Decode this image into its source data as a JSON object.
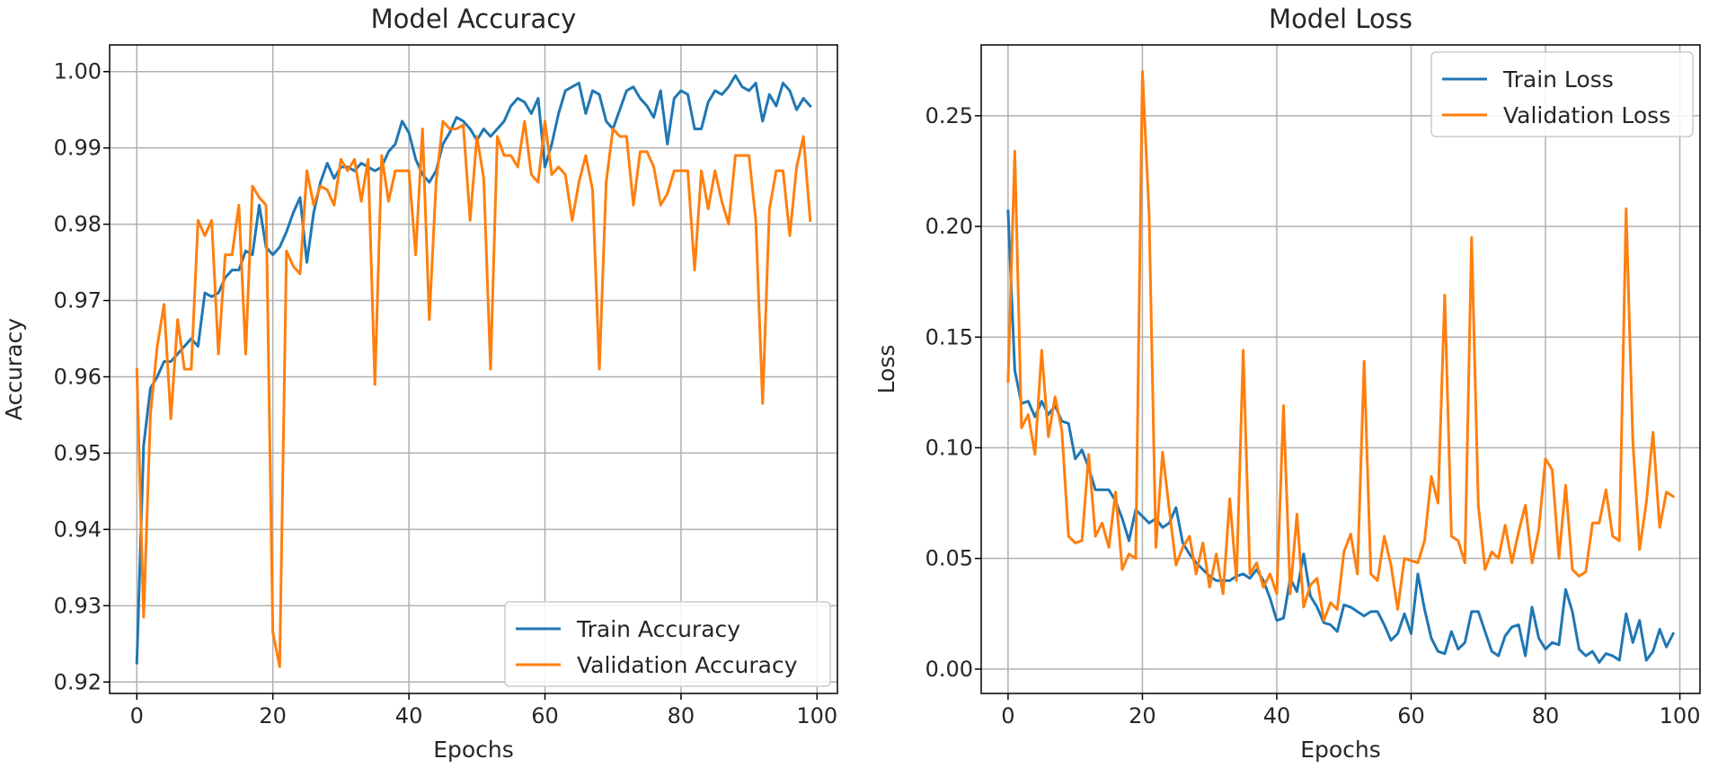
{
  "chart_data": [
    {
      "type": "line",
      "title": "Model Accuracy",
      "xlabel": "Epochs",
      "ylabel": "Accuracy",
      "xlim": [
        -4,
        103
      ],
      "ylim": [
        0.9185,
        1.0035
      ],
      "xticks": [
        0,
        20,
        40,
        60,
        80,
        100
      ],
      "xtick_labels": [
        "0",
        "20",
        "40",
        "60",
        "80",
        "100"
      ],
      "yticks": [
        0.92,
        0.93,
        0.94,
        0.95,
        0.96,
        0.97,
        0.98,
        0.99,
        1.0
      ],
      "ytick_labels": [
        "0.92",
        "0.93",
        "0.94",
        "0.95",
        "0.96",
        "0.97",
        "0.98",
        "0.99",
        "1.00"
      ],
      "grid": true,
      "legend_position": "lower-right",
      "series": [
        {
          "name": "Train Accuracy",
          "color": "#1f77b4",
          "x": [
            0,
            1,
            2,
            3,
            4,
            5,
            6,
            7,
            8,
            9,
            10,
            11,
            12,
            13,
            14,
            15,
            16,
            17,
            18,
            19,
            20,
            21,
            22,
            23,
            24,
            25,
            26,
            27,
            28,
            29,
            30,
            31,
            32,
            33,
            34,
            35,
            36,
            37,
            38,
            39,
            40,
            41,
            42,
            43,
            44,
            45,
            46,
            47,
            48,
            49,
            50,
            51,
            52,
            53,
            54,
            55,
            56,
            57,
            58,
            59,
            60,
            61,
            62,
            63,
            64,
            65,
            66,
            67,
            68,
            69,
            70,
            71,
            72,
            73,
            74,
            75,
            76,
            77,
            78,
            79,
            80,
            81,
            82,
            83,
            84,
            85,
            86,
            87,
            88,
            89,
            90,
            91,
            92,
            93,
            94,
            95,
            96,
            97,
            98,
            99
          ],
          "values": [
            0.9225,
            0.951,
            0.9585,
            0.96,
            0.962,
            0.962,
            0.963,
            0.964,
            0.965,
            0.964,
            0.971,
            0.9705,
            0.971,
            0.973,
            0.974,
            0.974,
            0.9765,
            0.976,
            0.9825,
            0.977,
            0.976,
            0.977,
            0.979,
            0.9815,
            0.9835,
            0.975,
            0.9815,
            0.9855,
            0.988,
            0.986,
            0.9875,
            0.9875,
            0.987,
            0.988,
            0.9875,
            0.987,
            0.9875,
            0.9895,
            0.9905,
            0.9935,
            0.992,
            0.9885,
            0.9865,
            0.9855,
            0.987,
            0.9905,
            0.992,
            0.994,
            0.9935,
            0.9925,
            0.991,
            0.9925,
            0.9915,
            0.9925,
            0.9935,
            0.9955,
            0.9965,
            0.996,
            0.9945,
            0.9965,
            0.9875,
            0.9905,
            0.9945,
            0.9975,
            0.998,
            0.9985,
            0.9945,
            0.9975,
            0.997,
            0.9935,
            0.9925,
            0.995,
            0.9975,
            0.998,
            0.9965,
            0.9955,
            0.994,
            0.9975,
            0.9905,
            0.9965,
            0.9975,
            0.997,
            0.9925,
            0.9925,
            0.996,
            0.9975,
            0.997,
            0.998,
            0.9995,
            0.998,
            0.9975,
            0.9985,
            0.9935,
            0.997,
            0.9955,
            0.9985,
            0.9975,
            0.995,
            0.9965,
            0.9955
          ]
        },
        {
          "name": "Validation Accuracy",
          "color": "#ff7f0e",
          "x": [
            0,
            1,
            2,
            3,
            4,
            5,
            6,
            7,
            8,
            9,
            10,
            11,
            12,
            13,
            14,
            15,
            16,
            17,
            18,
            19,
            20,
            21,
            22,
            23,
            24,
            25,
            26,
            27,
            28,
            29,
            30,
            31,
            32,
            33,
            34,
            35,
            36,
            37,
            38,
            39,
            40,
            41,
            42,
            43,
            44,
            45,
            46,
            47,
            48,
            49,
            50,
            51,
            52,
            53,
            54,
            55,
            56,
            57,
            58,
            59,
            60,
            61,
            62,
            63,
            64,
            65,
            66,
            67,
            68,
            69,
            70,
            71,
            72,
            73,
            74,
            75,
            76,
            77,
            78,
            79,
            80,
            81,
            82,
            83,
            84,
            85,
            86,
            87,
            88,
            89,
            90,
            91,
            92,
            93,
            94,
            95,
            96,
            97,
            98,
            99
          ],
          "values": [
            0.961,
            0.9285,
            0.955,
            0.964,
            0.9695,
            0.9545,
            0.9675,
            0.961,
            0.961,
            0.9805,
            0.9785,
            0.9805,
            0.963,
            0.976,
            0.976,
            0.9825,
            0.963,
            0.985,
            0.9835,
            0.9825,
            0.9265,
            0.922,
            0.9765,
            0.9745,
            0.9735,
            0.987,
            0.9825,
            0.985,
            0.9845,
            0.9825,
            0.9885,
            0.987,
            0.9885,
            0.983,
            0.9885,
            0.959,
            0.989,
            0.983,
            0.987,
            0.987,
            0.987,
            0.976,
            0.9925,
            0.9675,
            0.9855,
            0.9935,
            0.9925,
            0.9925,
            0.993,
            0.9805,
            0.9915,
            0.986,
            0.961,
            0.9915,
            0.989,
            0.989,
            0.9875,
            0.9935,
            0.9865,
            0.9855,
            0.9935,
            0.9865,
            0.9875,
            0.9865,
            0.9805,
            0.9855,
            0.989,
            0.9845,
            0.961,
            0.9855,
            0.9925,
            0.9915,
            0.9915,
            0.9825,
            0.9895,
            0.9895,
            0.9875,
            0.9825,
            0.984,
            0.987,
            0.987,
            0.987,
            0.974,
            0.987,
            0.982,
            0.987,
            0.983,
            0.98,
            0.989,
            0.989,
            0.989,
            0.9805,
            0.9565,
            0.982,
            0.987,
            0.987,
            0.9785,
            0.9875,
            0.9915,
            0.9805
          ]
        }
      ]
    },
    {
      "type": "line",
      "title": "Model Loss",
      "xlabel": "Epochs",
      "ylabel": "Loss",
      "xlim": [
        -4,
        103
      ],
      "ylim": [
        -0.011,
        0.282
      ],
      "xticks": [
        0,
        20,
        40,
        60,
        80,
        100
      ],
      "xtick_labels": [
        "0",
        "20",
        "40",
        "60",
        "80",
        "100"
      ],
      "yticks": [
        0.0,
        0.05,
        0.1,
        0.15,
        0.2,
        0.25
      ],
      "ytick_labels": [
        "0.00",
        "0.05",
        "0.10",
        "0.15",
        "0.20",
        "0.25"
      ],
      "grid": true,
      "legend_position": "upper-right",
      "series": [
        {
          "name": "Train Loss",
          "color": "#1f77b4",
          "x": [
            0,
            1,
            2,
            3,
            4,
            5,
            6,
            7,
            8,
            9,
            10,
            11,
            12,
            13,
            14,
            15,
            16,
            17,
            18,
            19,
            20,
            21,
            22,
            23,
            24,
            25,
            26,
            27,
            28,
            29,
            30,
            31,
            32,
            33,
            34,
            35,
            36,
            37,
            38,
            39,
            40,
            41,
            42,
            43,
            44,
            45,
            46,
            47,
            48,
            49,
            50,
            51,
            52,
            53,
            54,
            55,
            56,
            57,
            58,
            59,
            60,
            61,
            62,
            63,
            64,
            65,
            66,
            67,
            68,
            69,
            70,
            71,
            72,
            73,
            74,
            75,
            76,
            77,
            78,
            79,
            80,
            81,
            82,
            83,
            84,
            85,
            86,
            87,
            88,
            89,
            90,
            91,
            92,
            93,
            94,
            95,
            96,
            97,
            98,
            99
          ],
          "values": [
            0.207,
            0.135,
            0.12,
            0.121,
            0.114,
            0.121,
            0.115,
            0.119,
            0.112,
            0.111,
            0.095,
            0.099,
            0.091,
            0.081,
            0.081,
            0.081,
            0.076,
            0.068,
            0.058,
            0.072,
            0.069,
            0.066,
            0.068,
            0.064,
            0.066,
            0.073,
            0.057,
            0.052,
            0.048,
            0.045,
            0.042,
            0.04,
            0.04,
            0.04,
            0.042,
            0.043,
            0.041,
            0.045,
            0.04,
            0.032,
            0.022,
            0.023,
            0.041,
            0.035,
            0.052,
            0.033,
            0.028,
            0.021,
            0.02,
            0.017,
            0.029,
            0.028,
            0.026,
            0.024,
            0.026,
            0.026,
            0.02,
            0.013,
            0.016,
            0.025,
            0.016,
            0.043,
            0.027,
            0.014,
            0.008,
            0.007,
            0.017,
            0.009,
            0.012,
            0.026,
            0.026,
            0.017,
            0.008,
            0.006,
            0.015,
            0.019,
            0.02,
            0.006,
            0.028,
            0.014,
            0.009,
            0.012,
            0.011,
            0.036,
            0.026,
            0.009,
            0.006,
            0.008,
            0.003,
            0.007,
            0.006,
            0.004,
            0.025,
            0.012,
            0.022,
            0.004,
            0.008,
            0.018,
            0.01,
            0.016
          ]
        },
        {
          "name": "Validation Loss",
          "color": "#ff7f0e",
          "x": [
            0,
            1,
            2,
            3,
            4,
            5,
            6,
            7,
            8,
            9,
            10,
            11,
            12,
            13,
            14,
            15,
            16,
            17,
            18,
            19,
            20,
            21,
            22,
            23,
            24,
            25,
            26,
            27,
            28,
            29,
            30,
            31,
            32,
            33,
            34,
            35,
            36,
            37,
            38,
            39,
            40,
            41,
            42,
            43,
            44,
            45,
            46,
            47,
            48,
            49,
            50,
            51,
            52,
            53,
            54,
            55,
            56,
            57,
            58,
            59,
            60,
            61,
            62,
            63,
            64,
            65,
            66,
            67,
            68,
            69,
            70,
            71,
            72,
            73,
            74,
            75,
            76,
            77,
            78,
            79,
            80,
            81,
            82,
            83,
            84,
            85,
            86,
            87,
            88,
            89,
            90,
            91,
            92,
            93,
            94,
            95,
            96,
            97,
            98,
            99
          ],
          "values": [
            0.13,
            0.234,
            0.109,
            0.115,
            0.097,
            0.144,
            0.105,
            0.123,
            0.108,
            0.06,
            0.057,
            0.058,
            0.097,
            0.06,
            0.066,
            0.055,
            0.08,
            0.045,
            0.052,
            0.05,
            0.27,
            0.205,
            0.055,
            0.098,
            0.072,
            0.047,
            0.055,
            0.06,
            0.043,
            0.057,
            0.037,
            0.052,
            0.034,
            0.077,
            0.04,
            0.144,
            0.043,
            0.048,
            0.037,
            0.043,
            0.034,
            0.119,
            0.034,
            0.07,
            0.028,
            0.038,
            0.041,
            0.022,
            0.03,
            0.027,
            0.053,
            0.061,
            0.043,
            0.139,
            0.043,
            0.04,
            0.06,
            0.047,
            0.027,
            0.05,
            0.049,
            0.048,
            0.058,
            0.087,
            0.075,
            0.169,
            0.06,
            0.058,
            0.048,
            0.195,
            0.074,
            0.045,
            0.053,
            0.05,
            0.065,
            0.048,
            0.062,
            0.074,
            0.048,
            0.063,
            0.095,
            0.09,
            0.05,
            0.083,
            0.045,
            0.042,
            0.044,
            0.066,
            0.066,
            0.081,
            0.06,
            0.058,
            0.208,
            0.103,
            0.054,
            0.075,
            0.107,
            0.064,
            0.08,
            0.078
          ]
        }
      ]
    }
  ]
}
